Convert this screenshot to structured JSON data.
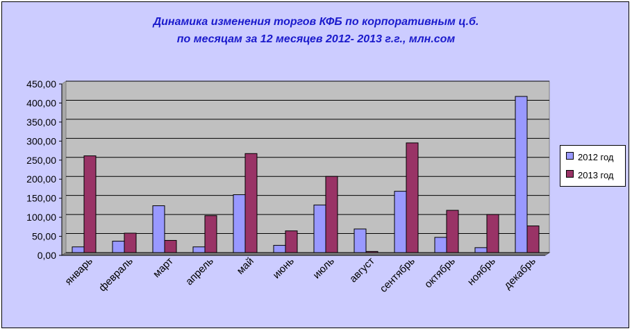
{
  "chart_data": {
    "type": "bar",
    "title_lines": [
      "Динамика изменения торгов КФБ по корпоративным ц.б.",
      "по месяцам за 12 месяцев 2012- 2013 г.г., млн.сом"
    ],
    "categories": [
      "январь",
      "февраль",
      "март",
      "апрель",
      "май",
      "июнь",
      "июль",
      "август",
      "сентябрь",
      "октябрь",
      "ноябрь",
      "декабрь"
    ],
    "series": [
      {
        "name": "2012 год",
        "color": "#9999ff",
        "values": [
          15,
          30,
          123,
          15,
          152,
          19,
          125,
          62,
          161,
          40,
          13,
          410
        ]
      },
      {
        "name": "2013 год",
        "color": "#993366",
        "values": [
          254,
          51,
          32,
          97,
          260,
          57,
          200,
          3,
          288,
          111,
          100,
          70
        ]
      }
    ],
    "ylim": [
      0,
      450
    ],
    "y_ticks": [
      "0,00",
      "50,00",
      "100,00",
      "150,00",
      "200,00",
      "250,00",
      "300,00",
      "350,00",
      "400,00",
      "450,00"
    ],
    "xlabel": "",
    "ylabel": "",
    "plot_background": "#c0c0c0",
    "grid": true,
    "legend_position": "right"
  }
}
